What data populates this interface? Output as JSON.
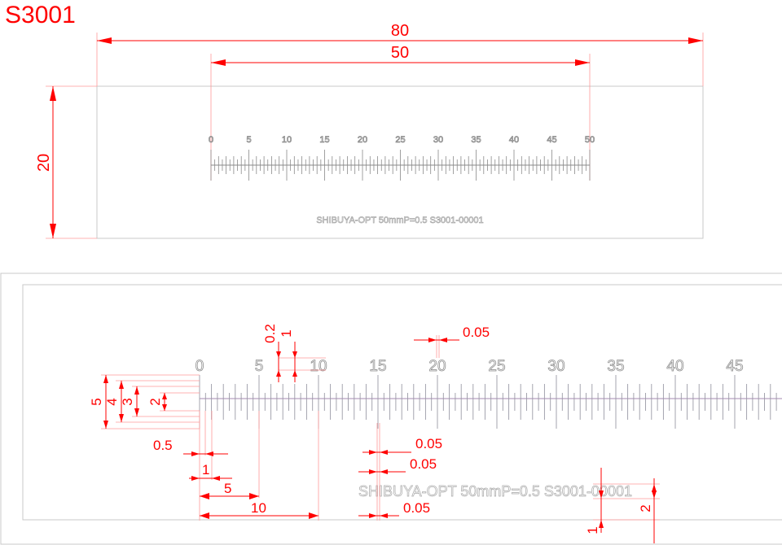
{
  "title": "S3001",
  "top_view": {
    "dims": {
      "overall_length": "80",
      "scale_length": "50",
      "height": "20"
    },
    "scale_labels": [
      "0",
      "5",
      "10",
      "15",
      "20",
      "25",
      "30",
      "35",
      "40",
      "45",
      "50"
    ],
    "marking": "SHIBUYA-OPT 50mmP=0.5 S3001-00001"
  },
  "detail_view": {
    "dims": {
      "num_height": "0.2",
      "num_width": "1",
      "line_width_top": "0.05",
      "tick_5": "5",
      "tick_4": "4",
      "tick_3": "3",
      "tick_2": "2",
      "pitch_05": "0.5",
      "pitch_1": "1",
      "pitch_5": "5",
      "pitch_10": "10",
      "line_width_a": "0.05",
      "line_width_b": "0.05",
      "line_width_c": "0.05",
      "text_gap": "1",
      "text_height": "2"
    },
    "scale_labels": [
      "0",
      "5",
      "10",
      "15",
      "20",
      "25",
      "30",
      "35",
      "40",
      "45"
    ],
    "marking": "SHIBUYA-OPT 50mmP=0.5 S3001-00001"
  },
  "colors": {
    "dimension": "#ff0000",
    "extension": "#ff9a9a",
    "outline": "#c8c8c8",
    "engraving": "#909090"
  }
}
